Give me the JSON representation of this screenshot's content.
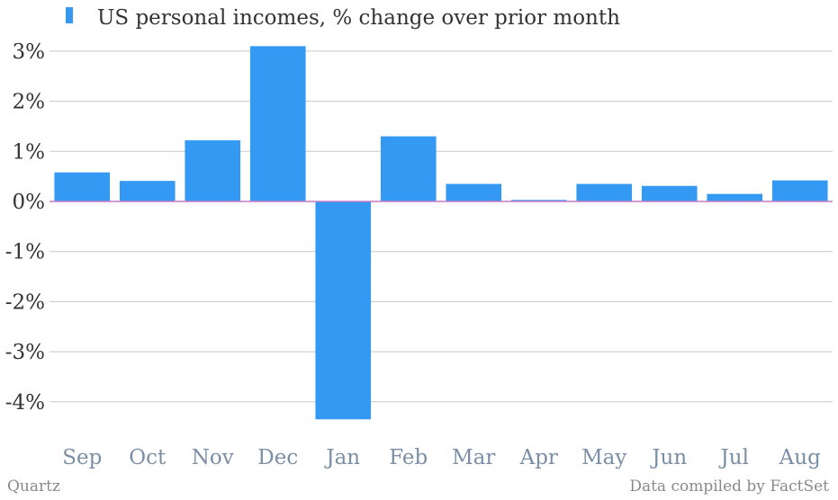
{
  "chart_data": {
    "type": "bar",
    "categories": [
      "Sep",
      "Oct",
      "Nov",
      "Dec",
      "Jan",
      "Feb",
      "Mar",
      "Apr",
      "May",
      "Jun",
      "Jul",
      "Aug"
    ],
    "series": [
      {
        "name": "US personal incomes, % change over prior month",
        "values": [
          0.58,
          0.41,
          1.22,
          3.1,
          -4.35,
          1.3,
          0.35,
          0.03,
          0.35,
          0.31,
          0.15,
          0.42
        ],
        "color": "#3399f3"
      }
    ],
    "ylim": [
      -4.6,
      3.2
    ],
    "yticks": [
      3,
      2,
      1,
      0,
      -1,
      -2,
      -3,
      -4
    ],
    "ytick_labels": [
      "3%",
      "2%",
      "1%",
      "0%",
      "-1%",
      "-2%",
      "-3%",
      "-4%"
    ],
    "grid": true,
    "legend_position": "top-left"
  },
  "footer": {
    "left": "Quartz",
    "right": "Data compiled by FactSet"
  },
  "colors": {
    "bar": "#3399f3",
    "zero_line": "#c37cc4",
    "grid": "#c8c8c8",
    "x_tick": "#7a8fa6"
  }
}
